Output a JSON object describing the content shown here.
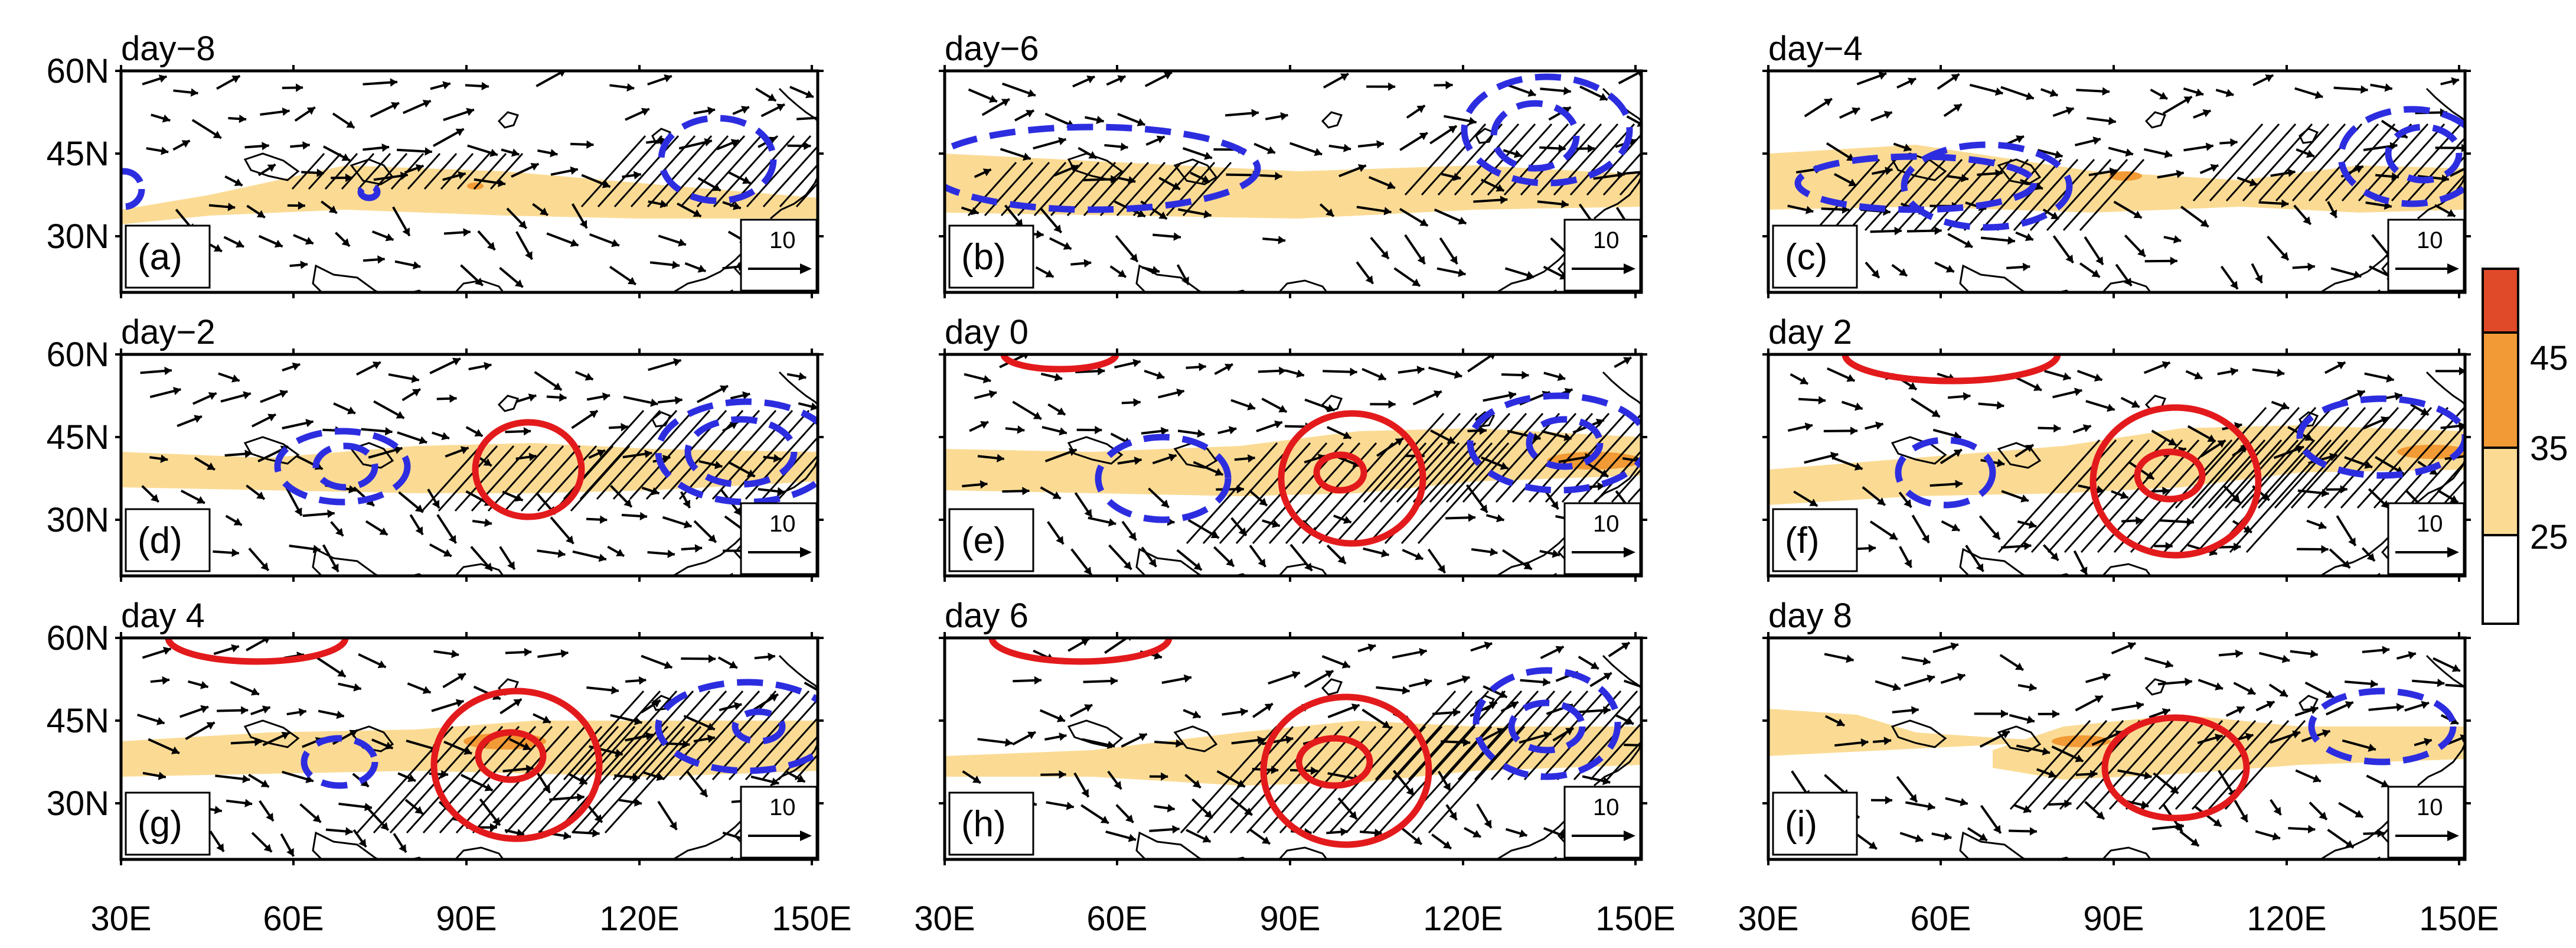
{
  "figure": {
    "panels": [
      {
        "id": "a",
        "title": "day−8",
        "label": "(a)",
        "ref_vector": "10"
      },
      {
        "id": "b",
        "title": "day−6",
        "label": "(b)",
        "ref_vector": "10"
      },
      {
        "id": "c",
        "title": "day−4",
        "label": "(c)",
        "ref_vector": "10"
      },
      {
        "id": "d",
        "title": "day−2",
        "label": "(d)",
        "ref_vector": "10"
      },
      {
        "id": "e",
        "title": "day 0",
        "label": "(e)",
        "ref_vector": "10"
      },
      {
        "id": "f",
        "title": "day 2",
        "label": "(f)",
        "ref_vector": "10"
      },
      {
        "id": "g",
        "title": "day 4",
        "label": "(g)",
        "ref_vector": "10"
      },
      {
        "id": "h",
        "title": "day 6",
        "label": "(h)",
        "ref_vector": "10"
      },
      {
        "id": "i",
        "title": "day 8",
        "label": "(i)",
        "ref_vector": "10"
      }
    ],
    "lat_ticks": [
      "60N",
      "45N",
      "30N"
    ],
    "lon_ticks": [
      "30E",
      "60E",
      "90E",
      "120E",
      "150E"
    ],
    "colorbar": {
      "labels": [
        "45",
        "35",
        "25"
      ],
      "colors": [
        "#e04a28",
        "#f29a35",
        "#fbdb94",
        "#ffffff"
      ]
    },
    "styles": {
      "positive_contour": "#e31a1c",
      "negative_contour": "#2d2de0",
      "jet_fill": "#fbdb94",
      "jet_core": "#f29a35"
    }
  }
}
